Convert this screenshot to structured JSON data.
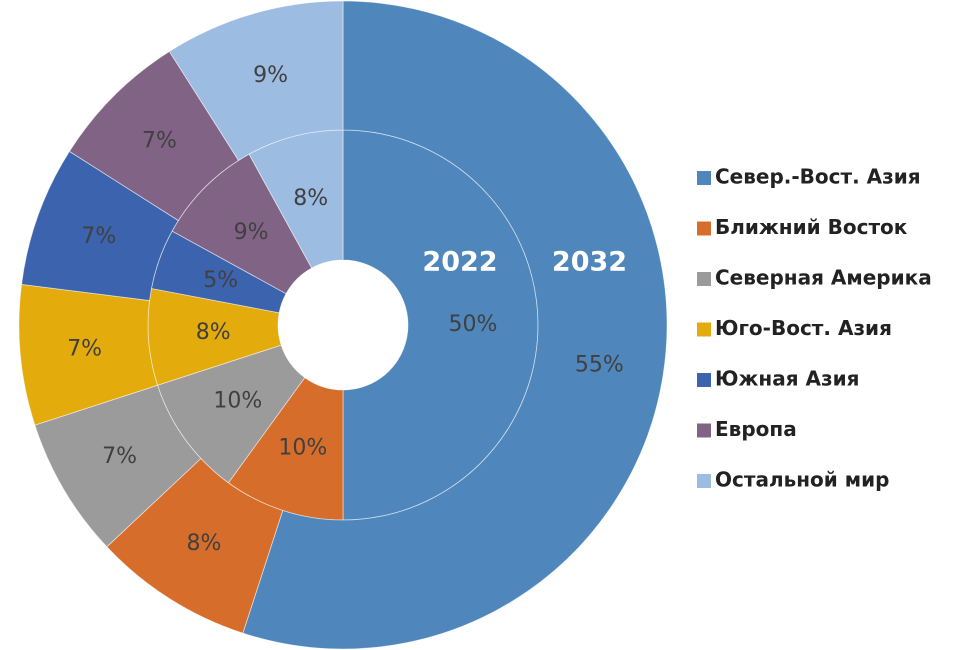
{
  "chart_data": {
    "type": "donut",
    "categories": [
      "Север.-Вост. Азия",
      "Ближний Восток",
      "Северная Америка",
      "Юго-Вост. Азия",
      "Южная Азия",
      "Европа",
      "Остальной мир"
    ],
    "colors": [
      "#4f87bd",
      "#d76d2b",
      "#9b9b9b",
      "#e3ab0b",
      "#3c63ad",
      "#806385",
      "#9cbce1"
    ],
    "series": [
      {
        "name": "2022",
        "values": [
          50,
          10,
          10,
          8,
          5,
          9,
          8
        ],
        "value_labels": [
          "50%",
          "10%",
          "10%",
          "8%",
          "5%",
          "9%",
          "8%"
        ]
      },
      {
        "name": "2032",
        "values": [
          55,
          8,
          7,
          7,
          7,
          7,
          9
        ],
        "value_labels": [
          "55%",
          "8%",
          "7%",
          "7%",
          "7%",
          "7%",
          "9%"
        ]
      }
    ],
    "legend": "right"
  }
}
